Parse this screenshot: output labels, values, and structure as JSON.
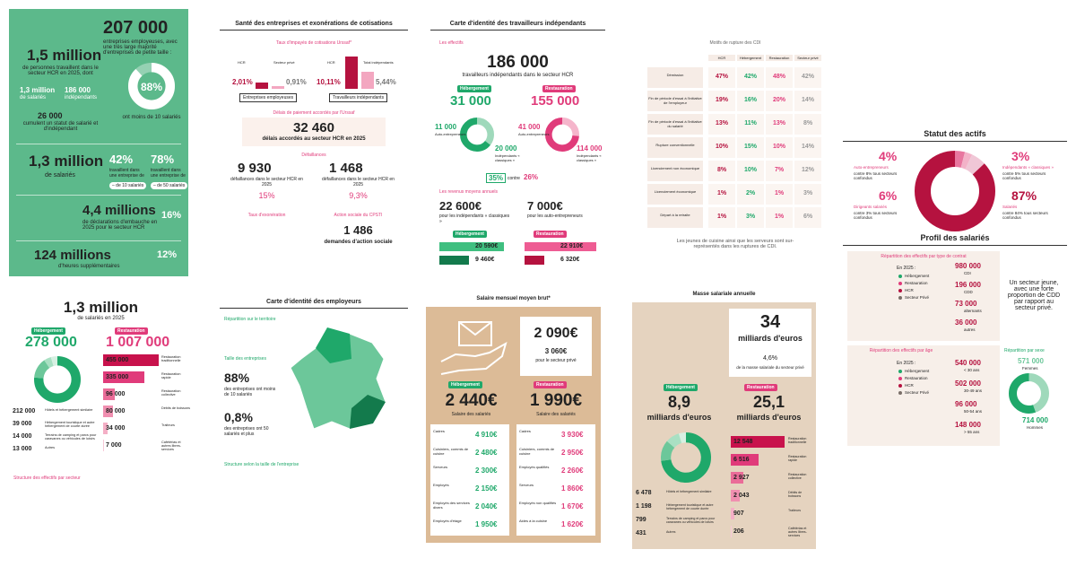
{
  "p1": {
    "entreprises": "207 000",
    "entreprises_text": "entreprises employeuses, avec une très large majorité d'entreprises de petite taille :",
    "personnes": "1,5 million",
    "personnes_text": "de personnes travaillent dans le secteur HCR en 2025, dont",
    "salaries": "1,3 million",
    "salaries_text": "de salariés",
    "independants": "186 000",
    "independants_text": "indépendants",
    "cumul": "26 000",
    "cumul_text": "cumulent un statut de salarié et d'indépendant",
    "petite": {
      "value": 88,
      "label": "88%"
    },
    "petite_text": "ont moins de 10 salariés",
    "salaries2": "1,3 million",
    "salaries2_text": "de salariés",
    "part_a": "42%",
    "part_a_text": "travaillent dans une entreprise de",
    "part_a_tag": "– de 10 salariés",
    "part_b": "78%",
    "part_b_text": "travaillent dans une entreprise de",
    "part_b_tag": "– de 50 salariés",
    "embauches": "4,4 millions",
    "embauches_text": "de déclarations d'embauche en 2025 pour le secteur HCR",
    "part_c": "16%",
    "heures": "124 millions",
    "heures_text": "d'heures supplémentaires",
    "part_d": "12%"
  },
  "p2": {
    "title": "Santé des entreprises et exonérations de cotisations",
    "impayes_title": "Taux d'impayés de cotisations Urssaf*",
    "hcr": "HCR",
    "prive": "Secteur privé",
    "total_ind": "Total indépendants",
    "emp_label": "Entreprises employeuses",
    "ind_label": "Travailleurs indépendants",
    "rates": [
      {
        "value": 2.01,
        "label": "2,01%"
      },
      {
        "value": 0.91,
        "label": "0,91%"
      },
      {
        "value": 10.11,
        "label": "10,11%"
      },
      {
        "value": 5.44,
        "label": "5,44%"
      }
    ],
    "delais_title": "Délais de paiement accordés par l'Urssaf",
    "delais": "32 460",
    "delais_text": "délais accordés au secteur HCR en 2025",
    "defaillances_title": "Défaillances",
    "def_emp": "9 930",
    "def_emp_text": "défaillances dans le secteur HCR en 2025",
    "def_emp_rate": "15%",
    "def_ind": "1 468",
    "def_ind_text": "défaillances dans le secteur HCR en 2025",
    "def_ind_rate": "9,3%",
    "exo_title": "Taux d'exonération",
    "action_title": "Action sociale du CPSTI",
    "action": "1 486",
    "action_text": "demandes d'action sociale"
  },
  "p3": {
    "title": "Carte d'identité des travailleurs indépendants",
    "effectifs": "Les effectifs",
    "total": "186 000",
    "total_text": "travailleurs indépendants dans le secteur HCR",
    "heb": "Hébergement",
    "heb_total": "31 000",
    "rest": "Restauration",
    "rest_total": "155 000",
    "heb_split": [
      {
        "value": 11000,
        "label": "11 000",
        "name": "Auto-entrepreneurs"
      },
      {
        "value": 20000,
        "label": "20 000",
        "name": "Indépendants « classiques »"
      }
    ],
    "rest_split": [
      {
        "value": 41000,
        "label": "41 000",
        "name": "Auto-entrepreneurs"
      },
      {
        "value": 114000,
        "label": "114 000",
        "name": "Indépendants « classiques »"
      }
    ],
    "part_heb": "35%",
    "contre": "contre",
    "part_rest": "26%",
    "revenus_title": "Les revenus moyens annuels",
    "rev_classique": "22 600€",
    "rev_classique_text": "pour les indépendants « classiques »",
    "rev_auto": "7 000€",
    "rev_auto_text": "pour les auto-entrepreneurs",
    "rev_heb": [
      {
        "value": 20590,
        "label": "20 590€"
      },
      {
        "value": 9460,
        "label": "9 460€"
      }
    ],
    "rev_rest": [
      {
        "value": 22910,
        "label": "22 910€"
      },
      {
        "value": 6320,
        "label": "6 320€"
      }
    ]
  },
  "p4": {
    "title": "Motifs de rupture des CDI",
    "columns": [
      "HCR",
      "Hébergement",
      "Restauration",
      "Secteur privé"
    ],
    "rows": [
      {
        "label": "Démission",
        "values": [
          "47%",
          "42%",
          "48%",
          "42%"
        ]
      },
      {
        "label": "Fin de période d'essai à l'initiative de l'employeur",
        "values": [
          "19%",
          "16%",
          "20%",
          "14%"
        ]
      },
      {
        "label": "Fin de période d'essai à l'initiative du salarié",
        "values": [
          "13%",
          "11%",
          "13%",
          "8%"
        ]
      },
      {
        "label": "Rupture conventionnelle",
        "values": [
          "10%",
          "15%",
          "10%",
          "14%"
        ]
      },
      {
        "label": "Licenciement non économique",
        "values": [
          "8%",
          "10%",
          "7%",
          "12%"
        ]
      },
      {
        "label": "Licenciement économique",
        "values": [
          "1%",
          "2%",
          "1%",
          "3%"
        ]
      },
      {
        "label": "Départ à la retraite",
        "values": [
          "1%",
          "3%",
          "1%",
          "6%"
        ]
      }
    ],
    "note": "Les jeunes de cuisine ainsi que les serveurs sont sur-représentés dans les ruptures de CDI."
  },
  "p5": {
    "statut_title": "Statut des actifs",
    "statut": [
      {
        "value": 4,
        "label": "4%",
        "name": "Auto-entrepreneurs",
        "note": "contre 8% tous secteurs confondus"
      },
      {
        "value": 3,
        "label": "3%",
        "name": "Indépendants « classiques »",
        "note": "contre 5% tous secteurs confondus"
      },
      {
        "value": 6,
        "label": "6%",
        "name": "Dirigeants salariés",
        "note": "contre 3% tous secteurs confondus"
      },
      {
        "value": 87,
        "label": "87%",
        "name": "Salariés",
        "note": "contre 84% tous secteurs confondus"
      }
    ],
    "profil_title": "Profil des salariés",
    "contrat_title": "Répartition des effectifs par type de contrat",
    "en2025": "En 2025 :",
    "legend": [
      "Hébergement",
      "Restauration",
      "HCR",
      "Secteur Privé"
    ],
    "contrats": [
      {
        "number": "980 000",
        "name": "CDI"
      },
      {
        "number": "196 000",
        "name": "CDD"
      },
      {
        "number": "73 000",
        "name": "alternants"
      },
      {
        "number": "36 000",
        "name": "autres"
      }
    ],
    "jeune": "Un secteur jeune, avec une forte proportion de CDD par rapport au secteur privé.",
    "age_title": "Répartition des effectifs par âge",
    "ages": [
      {
        "number": "540 000",
        "name": "< 30 ans"
      },
      {
        "number": "502 000",
        "name": "30-49 ans"
      },
      {
        "number": "96 000",
        "name": "50-54 ans"
      },
      {
        "number": "148 000",
        "name": "> 55 ans"
      }
    ],
    "sexe_title": "Répartition par sexe",
    "sexe": [
      {
        "value": 571000,
        "label": "571 000",
        "name": "Femmes"
      },
      {
        "value": 714000,
        "label": "714 000",
        "name": "Hommes"
      }
    ]
  },
  "p6": {
    "total": "1,3 million",
    "total_text": "de salariés en 2025",
    "heb": "Hébergement",
    "heb_total": "278 000",
    "rest": "Restauration",
    "rest_total": "1 007 000",
    "heb_detail": [
      {
        "value": 212000,
        "label": "212 000",
        "name": "Hôtels et hébergement similaire"
      },
      {
        "value": 39000,
        "label": "39 000",
        "name": "Hébergement touristique et autre hébergement de courte durée"
      },
      {
        "value": 14000,
        "label": "14 000",
        "name": "Terrains de camping et parcs pour caravanes ou véhicules de loisirs"
      },
      {
        "value": 13000,
        "label": "13 000",
        "name": "Autres"
      }
    ],
    "rest_detail": [
      {
        "value": 455000,
        "label": "455 000",
        "name": "Restauration traditionnelle"
      },
      {
        "value": 335000,
        "label": "335 000",
        "name": "Restauration rapide"
      },
      {
        "value": 96000,
        "label": "96 000",
        "name": "Restauration collective"
      },
      {
        "value": 80000,
        "label": "80 000",
        "name": "Débits de boissons"
      },
      {
        "value": 34000,
        "label": "34 000",
        "name": "Traiteurs"
      },
      {
        "value": 7000,
        "label": "7 000",
        "name": "Cafétérias et autres libres-services"
      }
    ],
    "structure_title": "Structure des effectifs par secteur"
  },
  "p7": {
    "title": "Carte d'identité des employeurs",
    "territoire": "Répartition sur le territoire",
    "taille_title": "Taille des entreprises",
    "petites": "88%",
    "petites_text": "des entreprises ont moins de 10 salariés",
    "grandes": "0,8%",
    "grandes_text": "des entreprises ont 50 salariés et plus",
    "structure_title": "Structure selon la taille de l'entreprise"
  },
  "p8": {
    "title": "Salaire mensuel moyen brut*",
    "global": "2 090€",
    "prive": "3 060€",
    "prive_text": "pour le secteur privé",
    "heb": "Hébergement",
    "heb_value": "2 440€",
    "heb_text": "Salaire des salariés",
    "rest": "Restauration",
    "rest_value": "1 990€",
    "rest_text": "Salaire des salariés",
    "heb_rows": [
      {
        "name": "Cadres",
        "value": "4 910€"
      },
      {
        "name": "Cuisiniers, commis de cuisine",
        "value": "2 480€"
      },
      {
        "name": "Serveurs",
        "value": "2 300€"
      },
      {
        "name": "Employés",
        "value": "2 150€"
      },
      {
        "name": "Employés des services divers",
        "value": "2 040€"
      },
      {
        "name": "Employés d'étage",
        "value": "1 950€"
      }
    ],
    "rest_rows": [
      {
        "name": "Cadres",
        "value": "3 930€"
      },
      {
        "name": "Cuisiniers, commis de cuisine",
        "value": "2 950€"
      },
      {
        "name": "Employés qualifiés",
        "value": "2 260€"
      },
      {
        "name": "Serveurs",
        "value": "1 860€"
      },
      {
        "name": "Employés non qualifiés",
        "value": "1 670€"
      },
      {
        "name": "Aides à la cuisine",
        "value": "1 620€"
      }
    ]
  },
  "p9": {
    "title": "Masse salariale annuelle",
    "total": "34",
    "unit": "milliards d'euros",
    "part": "4,6%",
    "part_text": "de la masse salariale du secteur privé",
    "heb": "Hébergement",
    "heb_total": "8,9",
    "rest": "Restauration",
    "rest_total": "25,1",
    "heb_detail": [
      {
        "value": 6478,
        "label": "6 478"
      },
      {
        "value": 1198,
        "label": "1 198"
      },
      {
        "value": 799,
        "label": "799"
      },
      {
        "value": 431,
        "label": "431"
      }
    ],
    "rest_detail": [
      {
        "value": 12548,
        "label": "12 548"
      },
      {
        "value": 6516,
        "label": "6 516"
      },
      {
        "value": 2927,
        "label": "2 927"
      },
      {
        "value": 2043,
        "label": "2 043"
      },
      {
        "value": 907,
        "label": "907"
      },
      {
        "value": 206,
        "label": "206"
      }
    ]
  }
}
